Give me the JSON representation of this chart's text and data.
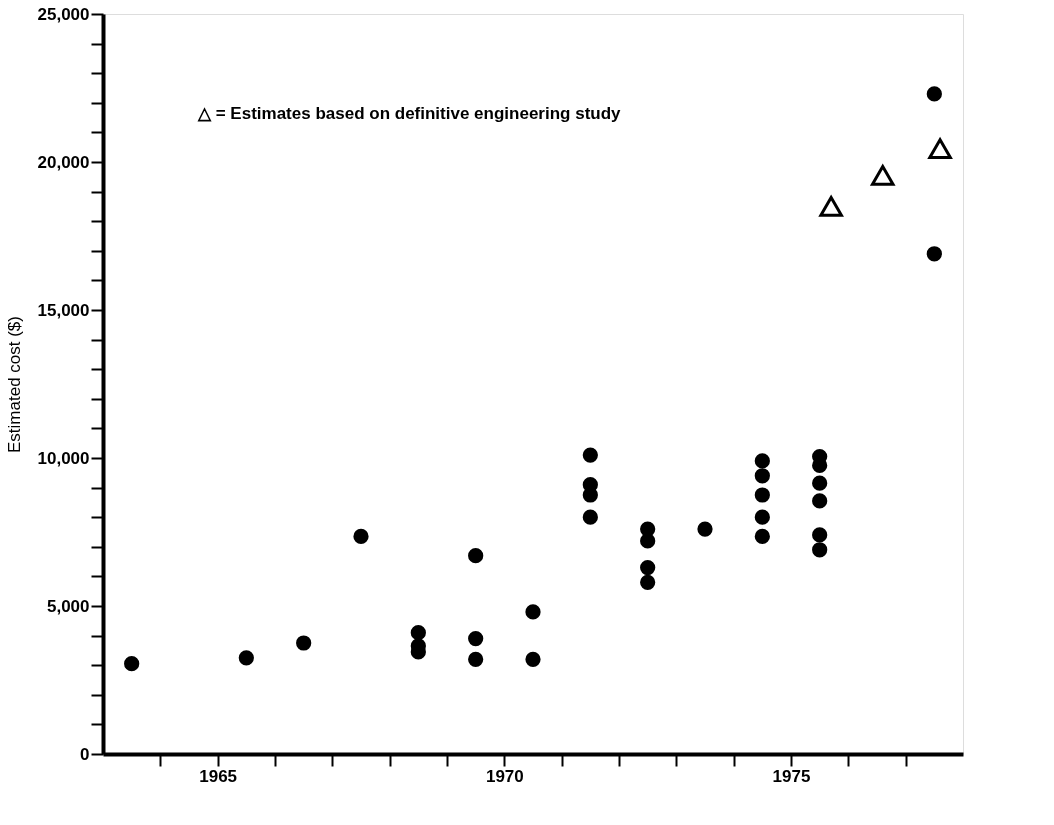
{
  "chart_data": {
    "type": "scatter",
    "ylabel": "Estimated cost ($)",
    "xlim": [
      1963,
      1978
    ],
    "ylim": [
      0,
      25000
    ],
    "xticks": [
      {
        "value": 1964,
        "label": null
      },
      1965,
      {
        "value": 1966,
        "label": null
      },
      {
        "value": 1967,
        "label": null
      },
      {
        "value": 1968,
        "label": null
      },
      {
        "value": 1969,
        "label": null
      },
      1970,
      {
        "value": 1971,
        "label": null
      },
      {
        "value": 1972,
        "label": null
      },
      {
        "value": 1973,
        "label": null
      },
      {
        "value": 1974,
        "label": null
      },
      1975,
      {
        "value": 1976,
        "label": null
      },
      {
        "value": 1977,
        "label": null
      }
    ],
    "yticks": [
      {
        "value": 0,
        "label": "0"
      },
      {
        "value": 1000,
        "label": null
      },
      {
        "value": 2000,
        "label": null
      },
      {
        "value": 3000,
        "label": null
      },
      {
        "value": 4000,
        "label": null
      },
      {
        "value": 5000,
        "label": "5,000"
      },
      {
        "value": 6000,
        "label": null
      },
      {
        "value": 7000,
        "label": null
      },
      {
        "value": 8000,
        "label": null
      },
      {
        "value": 9000,
        "label": null
      },
      {
        "value": 10000,
        "label": "10,000"
      },
      {
        "value": 11000,
        "label": null
      },
      {
        "value": 12000,
        "label": null
      },
      {
        "value": 13000,
        "label": null
      },
      {
        "value": 14000,
        "label": null
      },
      {
        "value": 15000,
        "label": "15,000"
      },
      {
        "value": 16000,
        "label": null
      },
      {
        "value": 17000,
        "label": null
      },
      {
        "value": 18000,
        "label": null
      },
      {
        "value": 19000,
        "label": null
      },
      {
        "value": 20000,
        "label": "20,000"
      },
      {
        "value": 21000,
        "label": null
      },
      {
        "value": 22000,
        "label": null
      },
      {
        "value": 23000,
        "label": null
      },
      {
        "value": 24000,
        "label": null
      },
      {
        "value": 25000,
        "label": "25,000"
      }
    ],
    "grid": false,
    "annotations": [
      "△ = Estimates based on definitive engineering study"
    ],
    "series": [
      {
        "color": "#000000",
        "marker": "circle",
        "x": [
          1963.5,
          1965.5,
          1966.5,
          1967.5,
          1968.5,
          1968.5,
          1968.5,
          1969.5,
          1969.5,
          1969.5,
          1970.5,
          1970.5,
          1971.5,
          1971.5,
          1971.5,
          1971.5,
          1972.5,
          1972.5,
          1972.5,
          1972.5,
          1973.5,
          1974.5,
          1974.5,
          1974.5,
          1974.5,
          1974.5,
          1975.5,
          1975.5,
          1975.5,
          1975.5,
          1975.5,
          1975.5,
          1977.5,
          1977.5
        ],
        "values": [
          3050,
          3250,
          3750,
          7350,
          4100,
          3650,
          3450,
          6700,
          3900,
          3200,
          4800,
          3200,
          10100,
          9100,
          8750,
          8000,
          7600,
          7200,
          6300,
          5800,
          7600,
          9900,
          9400,
          8750,
          8000,
          7350,
          10050,
          9750,
          9150,
          8550,
          7400,
          6900,
          22300,
          16900
        ]
      },
      {
        "color": "#000000",
        "marker": "triangle",
        "x": [
          1975.7,
          1976.6,
          1977.6
        ],
        "values": [
          18500,
          19550,
          20450
        ]
      }
    ]
  }
}
